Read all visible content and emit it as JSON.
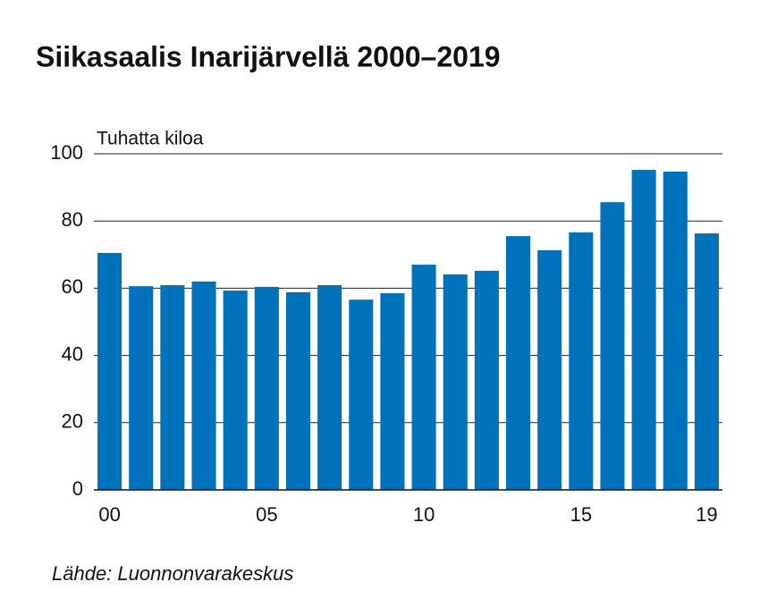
{
  "chart_data": {
    "type": "bar",
    "title": "Siikasaalis Inarijärvellä 2000–2019",
    "y_label": "Tuhatta kiloa",
    "source": "Lähde: Luonnonvarakeskus",
    "categories": [
      "00",
      null,
      null,
      null,
      null,
      "05",
      null,
      null,
      null,
      null,
      "10",
      null,
      null,
      null,
      null,
      "15",
      null,
      null,
      null,
      "19"
    ],
    "values": [
      70.5,
      60.6,
      60.9,
      62.0,
      59.3,
      60.4,
      58.8,
      60.9,
      56.6,
      58.5,
      67.0,
      64.1,
      65.2,
      75.5,
      71.3,
      76.6,
      85.6,
      95.2,
      94.7,
      76.3
    ],
    "color": "#0072bc",
    "ylim": [
      0,
      100
    ],
    "yticks": [
      0,
      20,
      40,
      60,
      80,
      100
    ],
    "grid": true
  }
}
